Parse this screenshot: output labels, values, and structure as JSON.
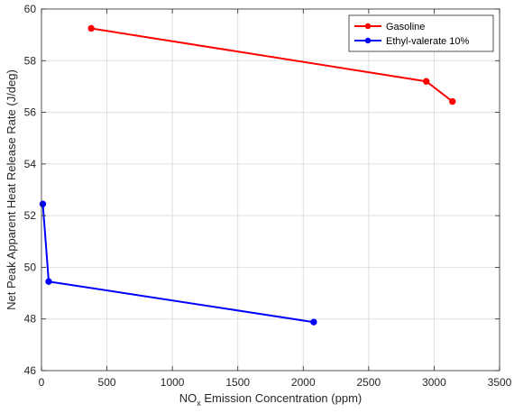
{
  "chart_data": {
    "type": "line",
    "xlabel": {
      "main": "NO",
      "sub": "x",
      "rest": " Emission Concentration (ppm)"
    },
    "ylabel": "Net Peak Apparent Heat Release Rate (J/deg)",
    "xlim": [
      0,
      3500
    ],
    "ylim": [
      46,
      60
    ],
    "xticks": [
      0,
      500,
      1000,
      1500,
      2000,
      2500,
      3000,
      3500
    ],
    "yticks": [
      46,
      48,
      50,
      52,
      54,
      56,
      58,
      60
    ],
    "grid": true,
    "legend_position": "top-right",
    "series": [
      {
        "name": "Gasoline",
        "color": "#ff0000",
        "x": [
          380,
          2940,
          3140
        ],
        "y": [
          59.25,
          57.2,
          56.42
        ]
      },
      {
        "name": "Ethyl-valerate 10%",
        "color": "#0000ff",
        "x": [
          10,
          55,
          2080
        ],
        "y": [
          52.45,
          49.45,
          47.88
        ]
      }
    ]
  }
}
